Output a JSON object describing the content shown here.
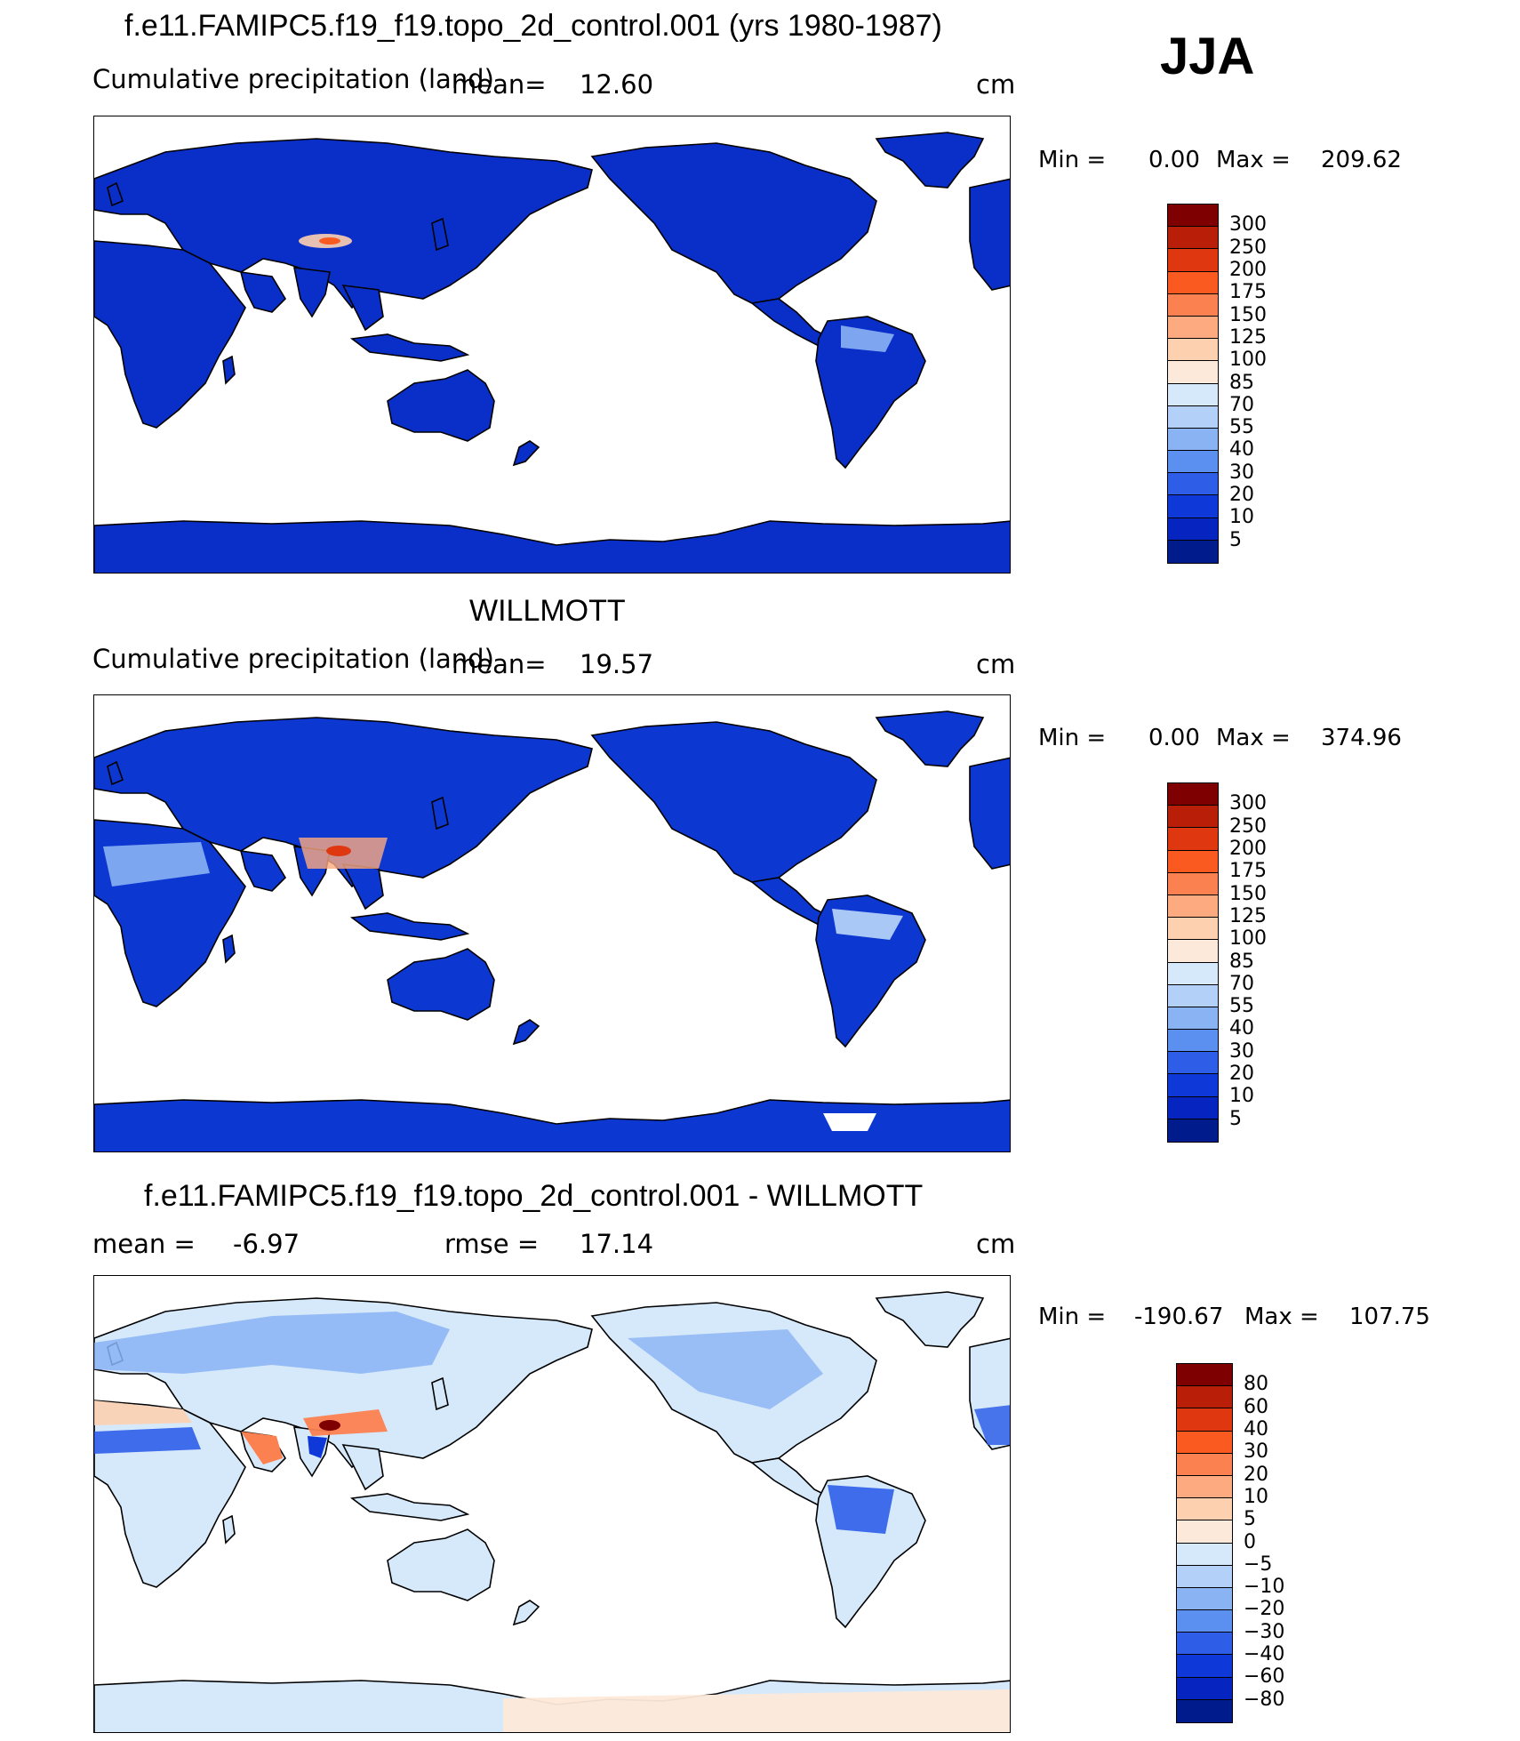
{
  "season": "JJA",
  "panels": [
    {
      "title": "f.e11.FAMIPC5.f19_f19.topo_2d_control.001 (yrs 1980-1987)",
      "left_label": "Cumulative precipitation (land)",
      "mean_label": "mean=",
      "mean_value": "12.60",
      "units": "cm",
      "min_label": "Min =",
      "min_value": "0.00",
      "max_label": "Max =",
      "max_value": "209.62",
      "colorbar": {
        "labels": [
          "300",
          "250",
          "200",
          "175",
          "150",
          "125",
          "100",
          "85",
          "70",
          "55",
          "40",
          "30",
          "20",
          "10",
          "5"
        ],
        "colors": [
          "#7e0000",
          "#b81e08",
          "#df3810",
          "#fa5a20",
          "#fc8150",
          "#fdaa80",
          "#fdd0b0",
          "#fde9d9",
          "#d6e9fb",
          "#b2d0f8",
          "#8ab3f4",
          "#5b8ff0",
          "#2e5ee8",
          "#0f38d8",
          "#0624c0",
          "#001c8c"
        ]
      },
      "field": "model"
    },
    {
      "title": "WILLMOTT",
      "left_label": "Cumulative precipitation (land)",
      "mean_label": "mean=",
      "mean_value": "19.57",
      "units": "cm",
      "min_label": "Min =",
      "min_value": "0.00",
      "max_label": "Max =",
      "max_value": "374.96",
      "colorbar": {
        "labels": [
          "300",
          "250",
          "200",
          "175",
          "150",
          "125",
          "100",
          "85",
          "70",
          "55",
          "40",
          "30",
          "20",
          "10",
          "5"
        ],
        "colors": [
          "#7e0000",
          "#b81e08",
          "#df3810",
          "#fa5a20",
          "#fc8150",
          "#fdaa80",
          "#fdd0b0",
          "#fde9d9",
          "#d6e9fb",
          "#b2d0f8",
          "#8ab3f4",
          "#5b8ff0",
          "#2e5ee8",
          "#0f38d8",
          "#0624c0",
          "#001c8c"
        ]
      },
      "field": "obs"
    },
    {
      "title": "f.e11.FAMIPC5.f19_f19.topo_2d_control.001 - WILLMOTT",
      "left_label": "mean =",
      "mean_label": "",
      "mean_value": "-6.97",
      "rmse_label": "rmse =",
      "rmse_value": "17.14",
      "units": "cm",
      "min_label": "Min =",
      "min_value": "-190.67",
      "max_label": "Max =",
      "max_value": "107.75",
      "colorbar": {
        "labels": [
          "80",
          "60",
          "40",
          "30",
          "20",
          "10",
          "5",
          "0",
          "-5",
          "-10",
          "-20",
          "-30",
          "-40",
          "-60",
          "-80"
        ],
        "colors": [
          "#7e0000",
          "#b81e08",
          "#df3810",
          "#fa5a20",
          "#fc8150",
          "#fdaa80",
          "#fdd0b0",
          "#fde9d9",
          "#d6e9fb",
          "#b2d0f8",
          "#8ab3f4",
          "#5b8ff0",
          "#2e5ee8",
          "#0f38d8",
          "#0624c0",
          "#001c8c"
        ]
      },
      "field": "diff"
    }
  ],
  "colors": {
    "model_land": "#0a2fc8",
    "model_dark": "#001c8c",
    "obs_land": "#0c37d0",
    "diff_land": "#d6e9fb",
    "diff_blue": "#5b8ff0",
    "diff_red": "#fdaa80",
    "ocean": "#ffffff",
    "coast": "#000000"
  }
}
